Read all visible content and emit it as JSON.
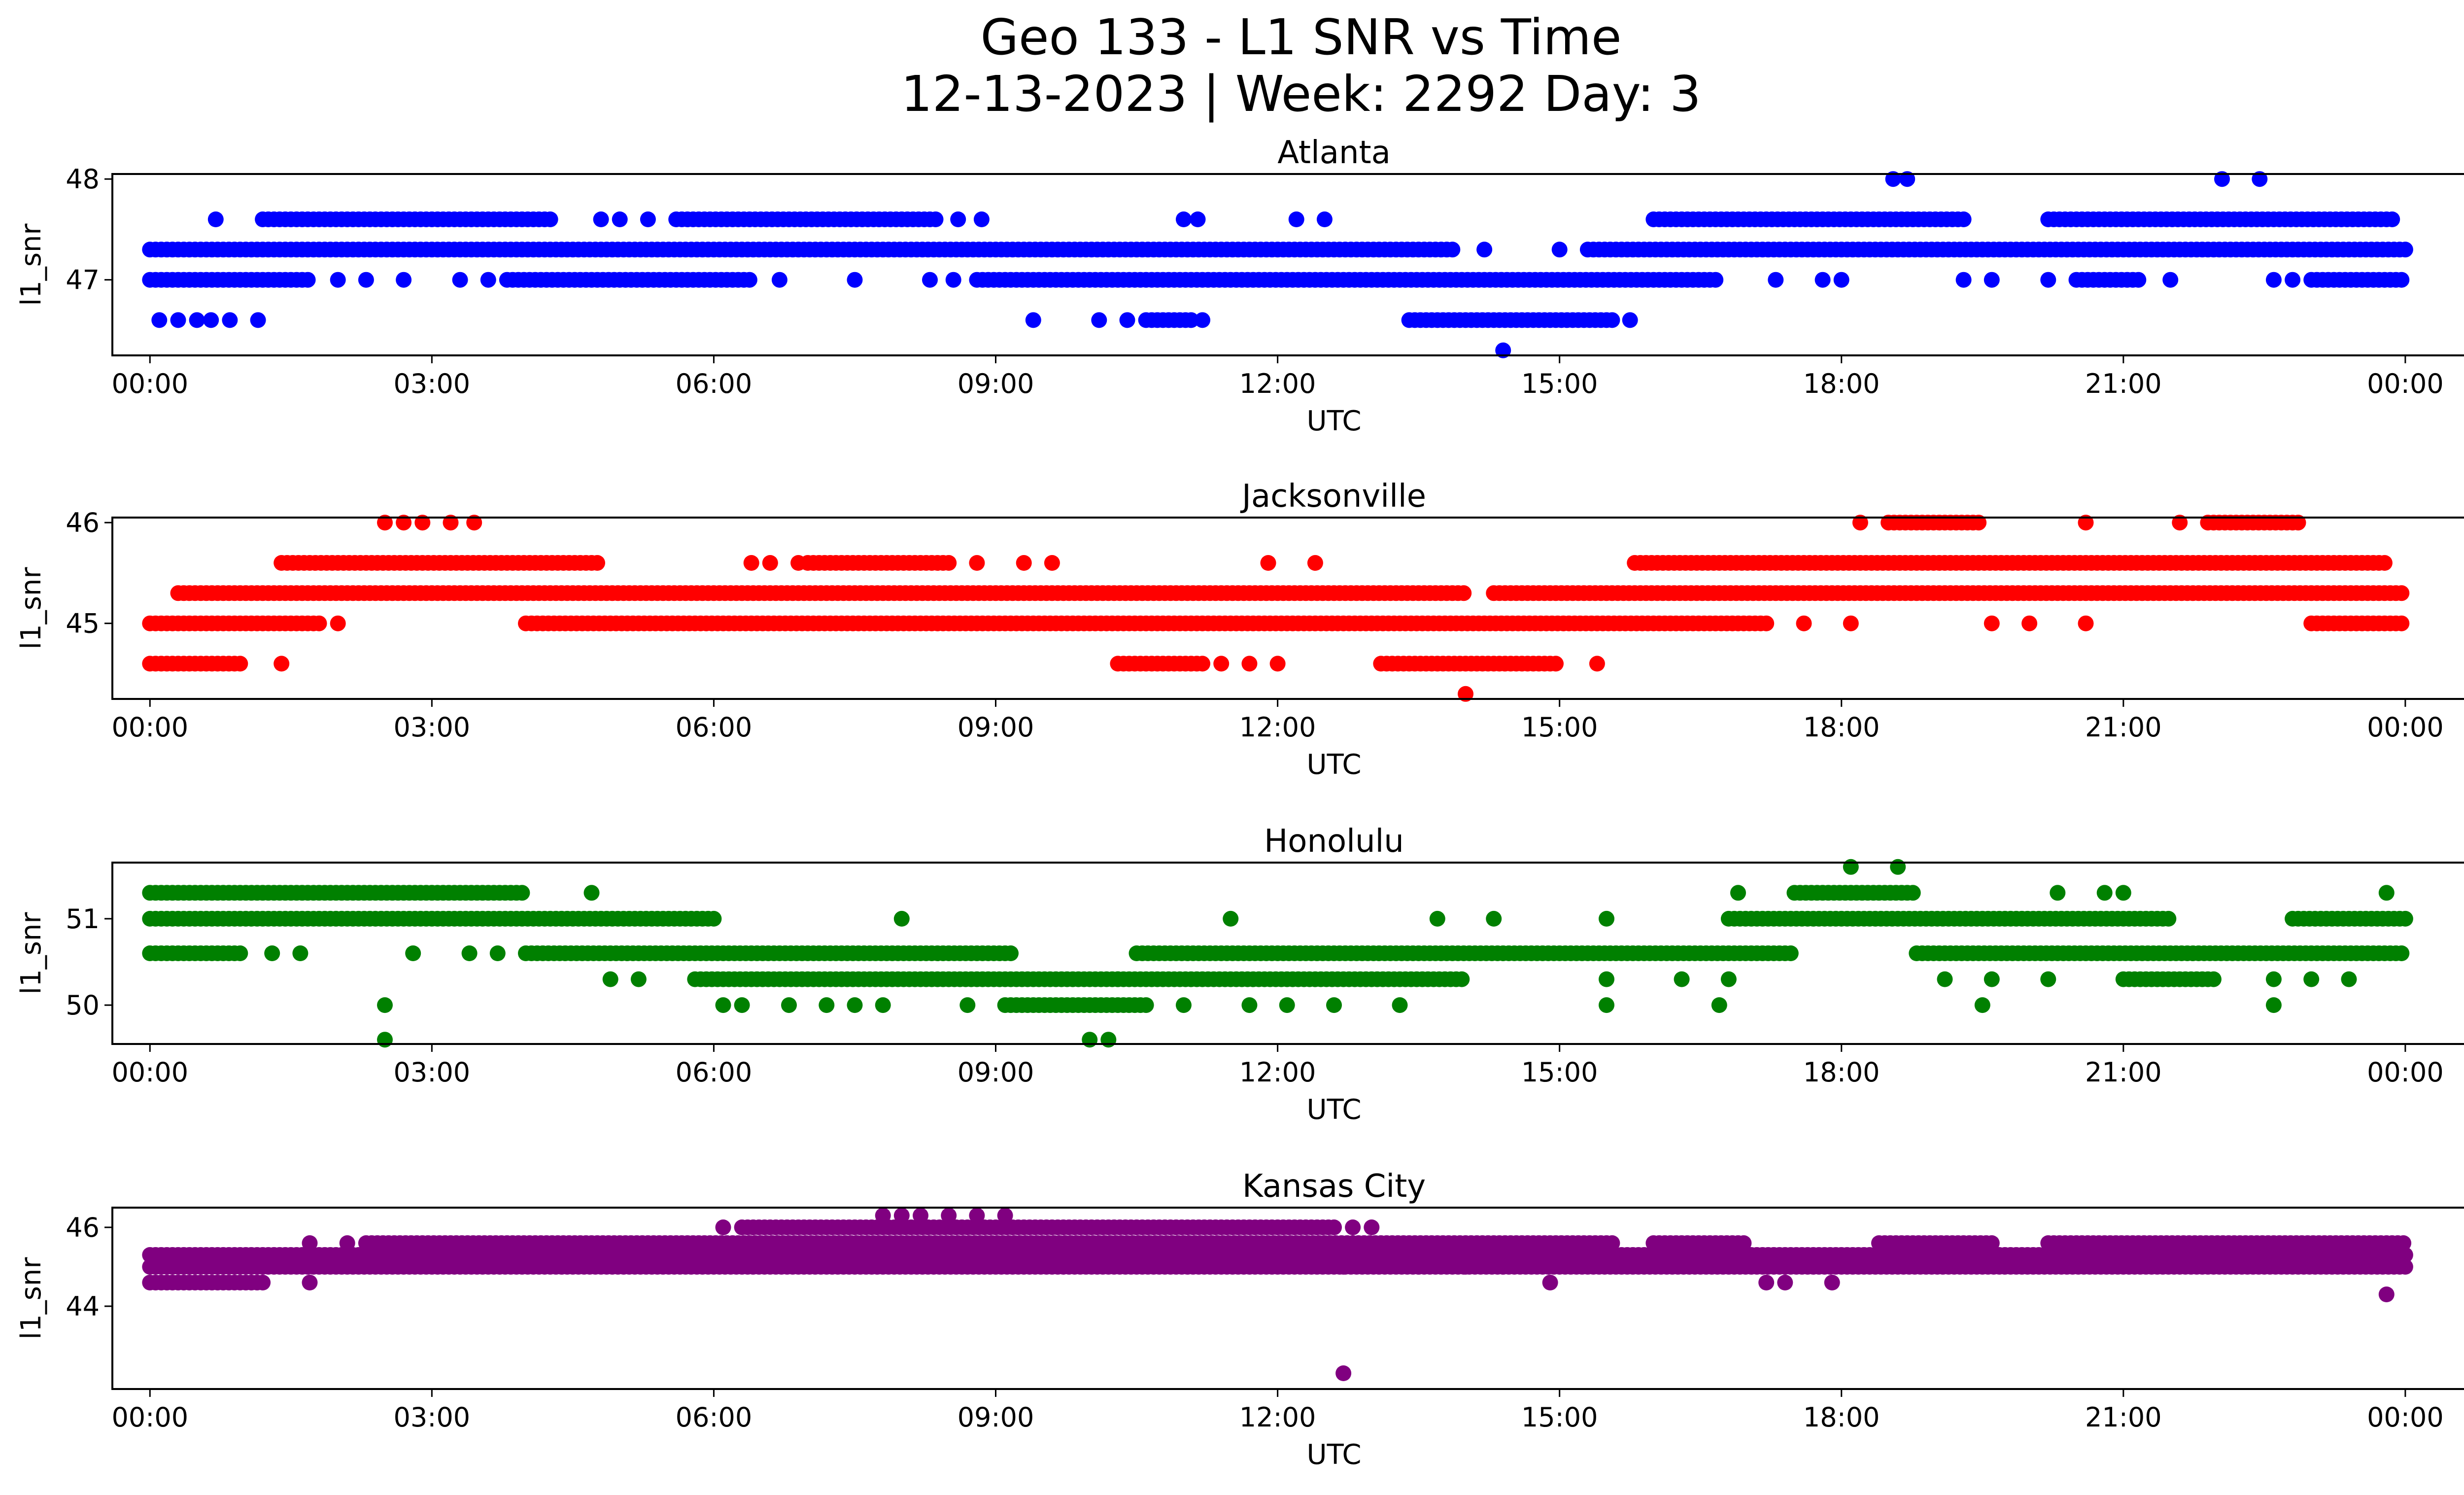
{
  "figure": {
    "title_line1": "Geo 133 - L1 SNR vs Time",
    "title_line2": "12-13-2023 | Week: 2292 Day: 3"
  },
  "chart_data": [
    {
      "type": "scatter",
      "title": "Atlanta",
      "xlabel": "UTC",
      "ylabel": "l1_snr",
      "color": "#0000ff",
      "xlim": [
        -0.4,
        25.6
      ],
      "ylim": [
        46.25,
        48.05
      ],
      "xticks": [
        "00:00",
        "03:00",
        "06:00",
        "09:00",
        "12:00",
        "15:00",
        "18:00",
        "21:00",
        "00:00"
      ],
      "yticks": [
        47,
        48
      ],
      "grid": false,
      "x_unit": "hours UTC since 00:00",
      "segments": [
        {
          "y": 47.3,
          "from": 0.0,
          "to": 13.9
        },
        {
          "y": 47.3,
          "from": 15.3,
          "to": 24.0
        },
        {
          "y": 47.0,
          "from": 0.0,
          "to": 1.7
        },
        {
          "y": 47.0,
          "from": 3.8,
          "to": 6.4
        },
        {
          "y": 47.0,
          "from": 8.8,
          "to": 16.7
        },
        {
          "y": 47.0,
          "from": 20.5,
          "to": 21.2
        },
        {
          "y": 47.0,
          "from": 23.0,
          "to": 24.0
        },
        {
          "y": 47.6,
          "from": 1.2,
          "to": 4.3
        },
        {
          "y": 47.6,
          "from": 5.6,
          "to": 8.4
        },
        {
          "y": 47.6,
          "from": 16.0,
          "to": 19.3
        },
        {
          "y": 47.6,
          "from": 20.2,
          "to": 23.9
        },
        {
          "y": 46.6,
          "from": 13.4,
          "to": 15.6
        },
        {
          "y": 46.6,
          "from": 10.6,
          "to": 11.1
        }
      ],
      "points": [
        {
          "x": 0.1,
          "y": 46.6
        },
        {
          "x": 0.3,
          "y": 46.6
        },
        {
          "x": 0.5,
          "y": 46.6
        },
        {
          "x": 0.65,
          "y": 46.6
        },
        {
          "x": 0.85,
          "y": 46.6
        },
        {
          "x": 1.15,
          "y": 46.6
        },
        {
          "x": 9.4,
          "y": 46.6
        },
        {
          "x": 10.1,
          "y": 46.6
        },
        {
          "x": 10.4,
          "y": 46.6
        },
        {
          "x": 11.2,
          "y": 46.6
        },
        {
          "x": 15.75,
          "y": 46.6
        },
        {
          "x": 14.4,
          "y": 46.3
        },
        {
          "x": 0.7,
          "y": 47.6
        },
        {
          "x": 4.8,
          "y": 47.6
        },
        {
          "x": 5.0,
          "y": 47.6
        },
        {
          "x": 5.3,
          "y": 47.6
        },
        {
          "x": 8.6,
          "y": 47.6
        },
        {
          "x": 8.85,
          "y": 47.6
        },
        {
          "x": 11.0,
          "y": 47.6
        },
        {
          "x": 11.15,
          "y": 47.6
        },
        {
          "x": 12.2,
          "y": 47.6
        },
        {
          "x": 12.5,
          "y": 47.6
        },
        {
          "x": 18.55,
          "y": 48.0
        },
        {
          "x": 18.7,
          "y": 48.0
        },
        {
          "x": 22.05,
          "y": 48.0
        },
        {
          "x": 22.45,
          "y": 48.0
        },
        {
          "x": 2.0,
          "y": 47.0
        },
        {
          "x": 2.3,
          "y": 47.0
        },
        {
          "x": 2.7,
          "y": 47.0
        },
        {
          "x": 3.3,
          "y": 47.0
        },
        {
          "x": 3.6,
          "y": 47.0
        },
        {
          "x": 6.7,
          "y": 47.0
        },
        {
          "x": 7.5,
          "y": 47.0
        },
        {
          "x": 8.3,
          "y": 47.0
        },
        {
          "x": 8.55,
          "y": 47.0
        },
        {
          "x": 17.3,
          "y": 47.0
        },
        {
          "x": 17.8,
          "y": 47.0
        },
        {
          "x": 18.0,
          "y": 47.0
        },
        {
          "x": 19.3,
          "y": 47.0
        },
        {
          "x": 19.6,
          "y": 47.0
        },
        {
          "x": 20.2,
          "y": 47.0
        },
        {
          "x": 21.5,
          "y": 47.0
        },
        {
          "x": 22.6,
          "y": 47.0
        },
        {
          "x": 22.8,
          "y": 47.0
        },
        {
          "x": 15.0,
          "y": 47.3
        },
        {
          "x": 14.2,
          "y": 47.3
        }
      ]
    },
    {
      "type": "scatter",
      "title": "Jacksonville",
      "xlabel": "UTC",
      "ylabel": "l1_snr",
      "color": "#ff0000",
      "xlim": [
        -0.4,
        25.6
      ],
      "ylim": [
        44.25,
        46.05
      ],
      "xticks": [
        "00:00",
        "03:00",
        "06:00",
        "09:00",
        "12:00",
        "15:00",
        "18:00",
        "21:00",
        "00:00"
      ],
      "yticks": [
        45,
        46
      ],
      "grid": false,
      "x_unit": "hours UTC since 00:00",
      "segments": [
        {
          "y": 45.3,
          "from": 0.3,
          "to": 14.0
        },
        {
          "y": 45.3,
          "from": 14.3,
          "to": 24.0
        },
        {
          "y": 45.0,
          "from": 0.0,
          "to": 1.8
        },
        {
          "y": 45.0,
          "from": 4.0,
          "to": 17.2
        },
        {
          "y": 45.0,
          "from": 23.0,
          "to": 24.0
        },
        {
          "y": 45.6,
          "from": 1.4,
          "to": 4.8
        },
        {
          "y": 45.6,
          "from": 7.0,
          "to": 8.5
        },
        {
          "y": 45.6,
          "from": 15.8,
          "to": 23.8
        },
        {
          "y": 44.6,
          "from": 13.1,
          "to": 15.0
        },
        {
          "y": 44.6,
          "from": 0.0,
          "to": 1.0
        },
        {
          "y": 44.6,
          "from": 10.3,
          "to": 11.2
        },
        {
          "y": 46.0,
          "from": 18.5,
          "to": 19.5
        },
        {
          "y": 46.0,
          "from": 21.9,
          "to": 22.9
        }
      ],
      "points": [
        {
          "x": 1.4,
          "y": 44.6
        },
        {
          "x": 11.4,
          "y": 44.6
        },
        {
          "x": 11.7,
          "y": 44.6
        },
        {
          "x": 12.0,
          "y": 44.6
        },
        {
          "x": 15.4,
          "y": 44.6
        },
        {
          "x": 14.0,
          "y": 44.3
        },
        {
          "x": 2.5,
          "y": 46.0
        },
        {
          "x": 2.7,
          "y": 46.0
        },
        {
          "x": 2.9,
          "y": 46.0
        },
        {
          "x": 3.2,
          "y": 46.0
        },
        {
          "x": 3.45,
          "y": 46.0
        },
        {
          "x": 18.2,
          "y": 46.0
        },
        {
          "x": 20.6,
          "y": 46.0
        },
        {
          "x": 21.6,
          "y": 46.0
        },
        {
          "x": 6.4,
          "y": 45.6
        },
        {
          "x": 6.6,
          "y": 45.6
        },
        {
          "x": 6.9,
          "y": 45.6
        },
        {
          "x": 8.8,
          "y": 45.6
        },
        {
          "x": 9.3,
          "y": 45.6
        },
        {
          "x": 9.6,
          "y": 45.6
        },
        {
          "x": 11.9,
          "y": 45.6
        },
        {
          "x": 12.4,
          "y": 45.6
        },
        {
          "x": 17.6,
          "y": 45.0
        },
        {
          "x": 18.1,
          "y": 45.0
        },
        {
          "x": 19.6,
          "y": 45.0
        },
        {
          "x": 20.0,
          "y": 45.0
        },
        {
          "x": 20.6,
          "y": 45.0
        },
        {
          "x": 2.0,
          "y": 45.0
        }
      ]
    },
    {
      "type": "scatter",
      "title": "Honolulu",
      "xlabel": "UTC",
      "ylabel": "l1_snr",
      "color": "#008000",
      "xlim": [
        -0.4,
        25.6
      ],
      "ylim": [
        49.55,
        51.65
      ],
      "xticks": [
        "00:00",
        "03:00",
        "06:00",
        "09:00",
        "12:00",
        "15:00",
        "18:00",
        "21:00",
        "00:00"
      ],
      "yticks": [
        50,
        51
      ],
      "grid": false,
      "x_unit": "hours UTC since 00:00",
      "segments": [
        {
          "y": 51.0,
          "from": 0.0,
          "to": 6.0
        },
        {
          "y": 51.0,
          "from": 16.8,
          "to": 21.5
        },
        {
          "y": 51.0,
          "from": 22.8,
          "to": 24.0
        },
        {
          "y": 51.3,
          "from": 0.0,
          "to": 4.0
        },
        {
          "y": 50.6,
          "from": 0.0,
          "to": 1.0
        },
        {
          "y": 50.6,
          "from": 4.0,
          "to": 9.2
        },
        {
          "y": 50.6,
          "from": 10.5,
          "to": 17.5
        },
        {
          "y": 50.6,
          "from": 18.8,
          "to": 24.0
        },
        {
          "y": 50.3,
          "from": 5.8,
          "to": 10.3
        },
        {
          "y": 50.3,
          "from": 10.3,
          "to": 14.0
        },
        {
          "y": 50.3,
          "from": 21.0,
          "to": 22.0
        },
        {
          "y": 50.0,
          "from": 9.1,
          "to": 10.6
        },
        {
          "y": 51.3,
          "from": 17.5,
          "to": 18.8
        }
      ],
      "points": [
        {
          "x": 2.5,
          "y": 50.0
        },
        {
          "x": 2.5,
          "y": 49.6
        },
        {
          "x": 10.0,
          "y": 49.6
        },
        {
          "x": 10.2,
          "y": 49.6
        },
        {
          "x": 2.8,
          "y": 50.6
        },
        {
          "x": 3.4,
          "y": 50.6
        },
        {
          "x": 3.7,
          "y": 50.6
        },
        {
          "x": 1.3,
          "y": 50.6
        },
        {
          "x": 1.6,
          "y": 50.6
        },
        {
          "x": 4.7,
          "y": 51.3
        },
        {
          "x": 8.0,
          "y": 51.0
        },
        {
          "x": 11.5,
          "y": 51.0
        },
        {
          "x": 4.9,
          "y": 50.3
        },
        {
          "x": 5.2,
          "y": 50.3
        },
        {
          "x": 6.1,
          "y": 50.0
        },
        {
          "x": 6.3,
          "y": 50.0
        },
        {
          "x": 6.8,
          "y": 50.0
        },
        {
          "x": 7.2,
          "y": 50.0
        },
        {
          "x": 7.5,
          "y": 50.0
        },
        {
          "x": 7.8,
          "y": 50.0
        },
        {
          "x": 8.7,
          "y": 50.0
        },
        {
          "x": 11.0,
          "y": 50.0
        },
        {
          "x": 11.7,
          "y": 50.0
        },
        {
          "x": 12.1,
          "y": 50.0
        },
        {
          "x": 12.6,
          "y": 50.0
        },
        {
          "x": 13.3,
          "y": 50.0
        },
        {
          "x": 15.5,
          "y": 50.0
        },
        {
          "x": 16.7,
          "y": 50.0
        },
        {
          "x": 13.7,
          "y": 51.0
        },
        {
          "x": 14.3,
          "y": 51.0
        },
        {
          "x": 15.5,
          "y": 51.0
        },
        {
          "x": 18.1,
          "y": 51.6
        },
        {
          "x": 18.6,
          "y": 51.6
        },
        {
          "x": 20.3,
          "y": 51.3
        },
        {
          "x": 20.8,
          "y": 51.3
        },
        {
          "x": 21.0,
          "y": 51.3
        },
        {
          "x": 23.8,
          "y": 51.3
        },
        {
          "x": 16.9,
          "y": 51.3
        },
        {
          "x": 15.5,
          "y": 50.3
        },
        {
          "x": 16.3,
          "y": 50.3
        },
        {
          "x": 16.8,
          "y": 50.3
        },
        {
          "x": 19.1,
          "y": 50.3
        },
        {
          "x": 19.6,
          "y": 50.3
        },
        {
          "x": 20.2,
          "y": 50.3
        },
        {
          "x": 22.6,
          "y": 50.3
        },
        {
          "x": 23.0,
          "y": 50.3
        },
        {
          "x": 23.4,
          "y": 50.3
        },
        {
          "x": 19.5,
          "y": 50.0
        },
        {
          "x": 22.6,
          "y": 50.0
        }
      ]
    },
    {
      "type": "scatter",
      "title": "Kansas City",
      "xlabel": "UTC",
      "ylabel": "l1_snr",
      "color": "#800080",
      "xlim": [
        -0.4,
        25.6
      ],
      "ylim": [
        41.9,
        46.5
      ],
      "xticks": [
        "00:00",
        "03:00",
        "06:00",
        "09:00",
        "12:00",
        "15:00",
        "18:00",
        "21:00",
        "00:00"
      ],
      "yticks": [
        44,
        46
      ],
      "grid": false,
      "x_unit": "hours UTC since 00:00",
      "segments": [
        {
          "y": 45.3,
          "from": 0.0,
          "to": 24.0
        },
        {
          "y": 45.0,
          "from": 0.0,
          "to": 24.0
        },
        {
          "y": 44.6,
          "from": 0.0,
          "to": 1.2
        },
        {
          "y": 45.6,
          "from": 2.3,
          "to": 15.6
        },
        {
          "y": 45.6,
          "from": 16.0,
          "to": 17.0
        },
        {
          "y": 45.6,
          "from": 18.4,
          "to": 19.6
        },
        {
          "y": 45.6,
          "from": 20.2,
          "to": 24.0
        },
        {
          "y": 46.0,
          "from": 6.3,
          "to": 12.6
        }
      ],
      "points": [
        {
          "x": 1.7,
          "y": 44.6
        },
        {
          "x": 17.2,
          "y": 44.6
        },
        {
          "x": 17.4,
          "y": 44.6
        },
        {
          "x": 17.9,
          "y": 44.6
        },
        {
          "x": 14.9,
          "y": 44.6
        },
        {
          "x": 23.8,
          "y": 44.3
        },
        {
          "x": 12.7,
          "y": 42.3
        },
        {
          "x": 1.7,
          "y": 45.6
        },
        {
          "x": 2.1,
          "y": 45.6
        },
        {
          "x": 6.1,
          "y": 46.0
        },
        {
          "x": 12.8,
          "y": 46.0
        },
        {
          "x": 13.0,
          "y": 46.0
        },
        {
          "x": 7.8,
          "y": 46.3
        },
        {
          "x": 8.0,
          "y": 46.3
        },
        {
          "x": 8.2,
          "y": 46.3
        },
        {
          "x": 8.5,
          "y": 46.3
        },
        {
          "x": 8.8,
          "y": 46.3
        },
        {
          "x": 9.1,
          "y": 46.3
        },
        {
          "x": 12.7,
          "y": 45.0
        },
        {
          "x": 13.5,
          "y": 45.0
        },
        {
          "x": 14.0,
          "y": 45.0
        },
        {
          "x": 14.4,
          "y": 45.0
        }
      ]
    }
  ]
}
